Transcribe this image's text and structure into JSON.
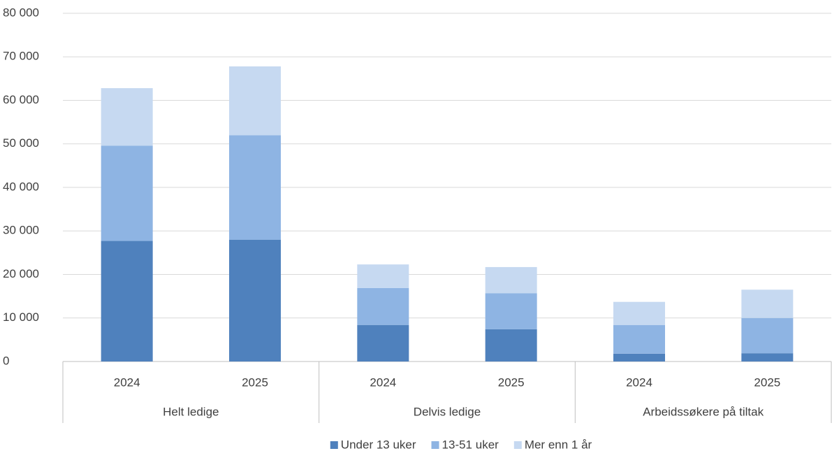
{
  "chart_data": {
    "type": "stacked_bar",
    "groups": [
      {
        "name": "Helt ledige",
        "categories": [
          "2024",
          "2025"
        ]
      },
      {
        "name": "Delvis ledige",
        "categories": [
          "2024",
          "2025"
        ]
      },
      {
        "name": "Arbeidssøkere på tiltak",
        "categories": [
          "2024",
          "2025"
        ]
      }
    ],
    "series": [
      {
        "name": "Under 13 uker",
        "color": "#4f81bd",
        "values": [
          27700,
          28000,
          8400,
          7400,
          1800,
          1900
        ]
      },
      {
        "name": "13-51 uker",
        "color": "#8eb4e3",
        "values": [
          21900,
          24000,
          8500,
          8300,
          6600,
          8100
        ]
      },
      {
        "name": "Mer enn 1 år",
        "color": "#c6d9f1",
        "values": [
          13200,
          15800,
          5400,
          6000,
          5300,
          6500
        ]
      }
    ],
    "ylim": [
      0,
      80000
    ],
    "yticks": [
      0,
      {
        "value": 10000,
        "label": "10 000"
      },
      {
        "value": 20000,
        "label": "20 000"
      },
      {
        "value": 30000,
        "label": "30 000"
      },
      {
        "value": 40000,
        "label": "40 000"
      },
      {
        "value": 50000,
        "label": "50 000"
      },
      {
        "value": 60000,
        "label": "60 000"
      },
      {
        "value": 70000,
        "label": "70 000"
      },
      {
        "value": 80000,
        "label": "80 000"
      }
    ],
    "grid": true,
    "legend": "bottom"
  }
}
